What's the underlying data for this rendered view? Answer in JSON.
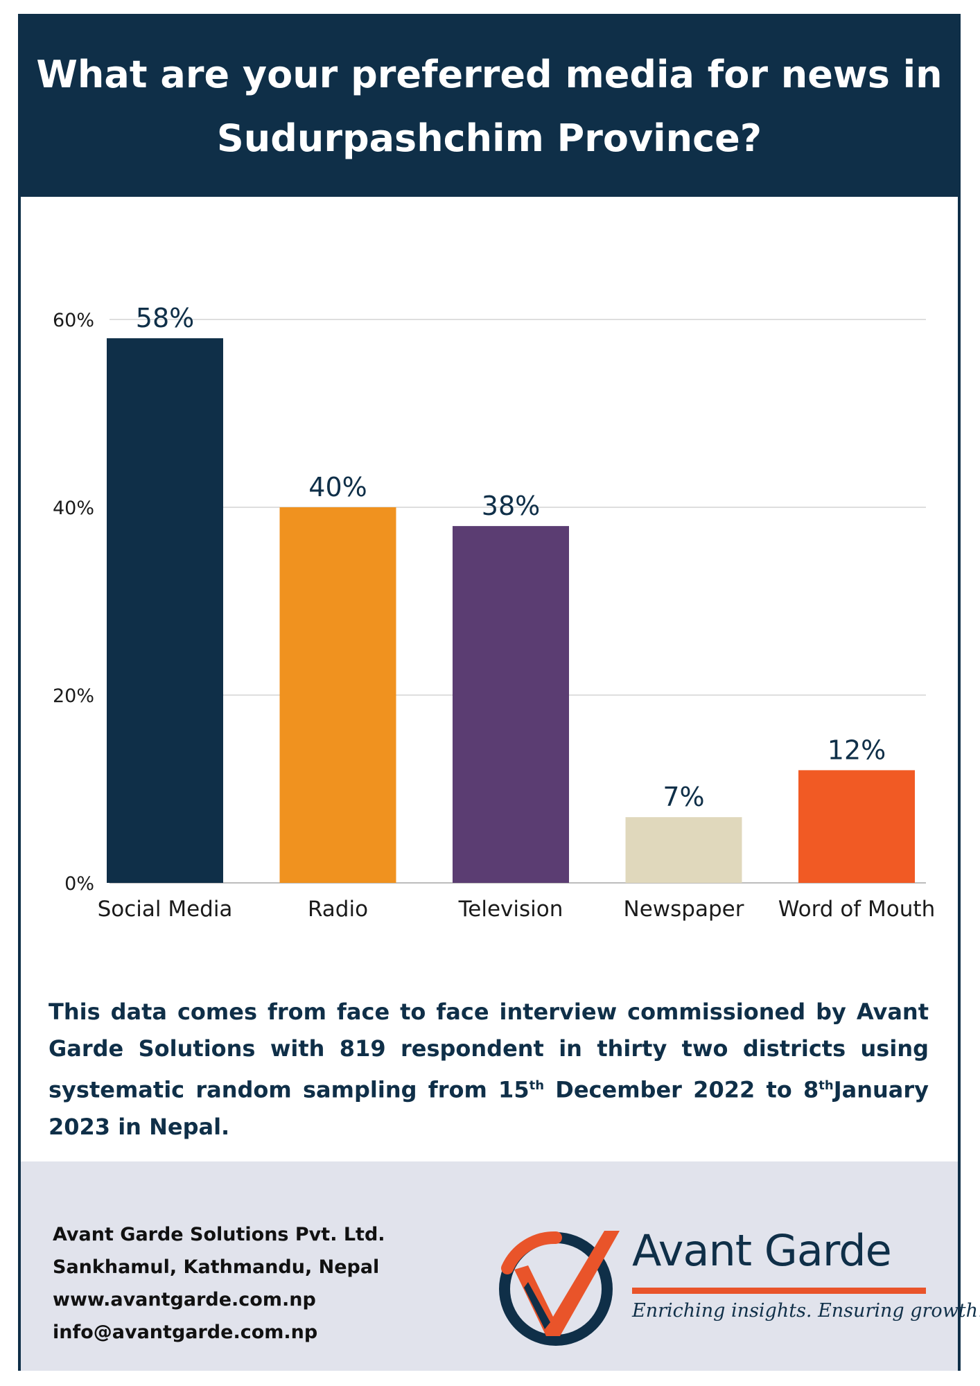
{
  "title": "What are your preferred media for news in Sudurpashchim Province?",
  "chart_data": {
    "type": "bar",
    "categories": [
      "Social Media",
      "Radio",
      "Television",
      "Newspaper",
      "Word of Mouth"
    ],
    "values": [
      58,
      40,
      38,
      7,
      12
    ],
    "value_labels": [
      "58%",
      "40%",
      "38%",
      "7%",
      "12%"
    ],
    "colors": [
      "#0f2f48",
      "#f0921f",
      "#5b3d72",
      "#e0d8bc",
      "#f15a24"
    ],
    "yticks": [
      0,
      20,
      40,
      60
    ],
    "ytick_labels": [
      "0%",
      "20%",
      "40%",
      "60%"
    ],
    "ylim": [
      0,
      60
    ],
    "grid": true,
    "title": "What are your preferred media for news in Sudurpashchim Province?",
    "xlabel": "",
    "ylabel": ""
  },
  "note": {
    "part1": "This data comes from face to face interview commissioned by Avant Garde Solutions with 819 respondent in thirty two districts using systematic random sampling from 15",
    "sup1": "th",
    "part2": " December 2022 to 8",
    "sup2": "th",
    "part3": "January 2023 in Nepal."
  },
  "footer": {
    "company": "Avant Garde Solutions Pvt. Ltd.",
    "address": "Sankhamul, Kathmandu, Nepal",
    "website": "www.avantgarde.com.np",
    "email": "info@avantgarde.com.np"
  },
  "logo": {
    "brand": "Avant Garde",
    "tagline": "Enriching insights. Ensuring growth."
  }
}
